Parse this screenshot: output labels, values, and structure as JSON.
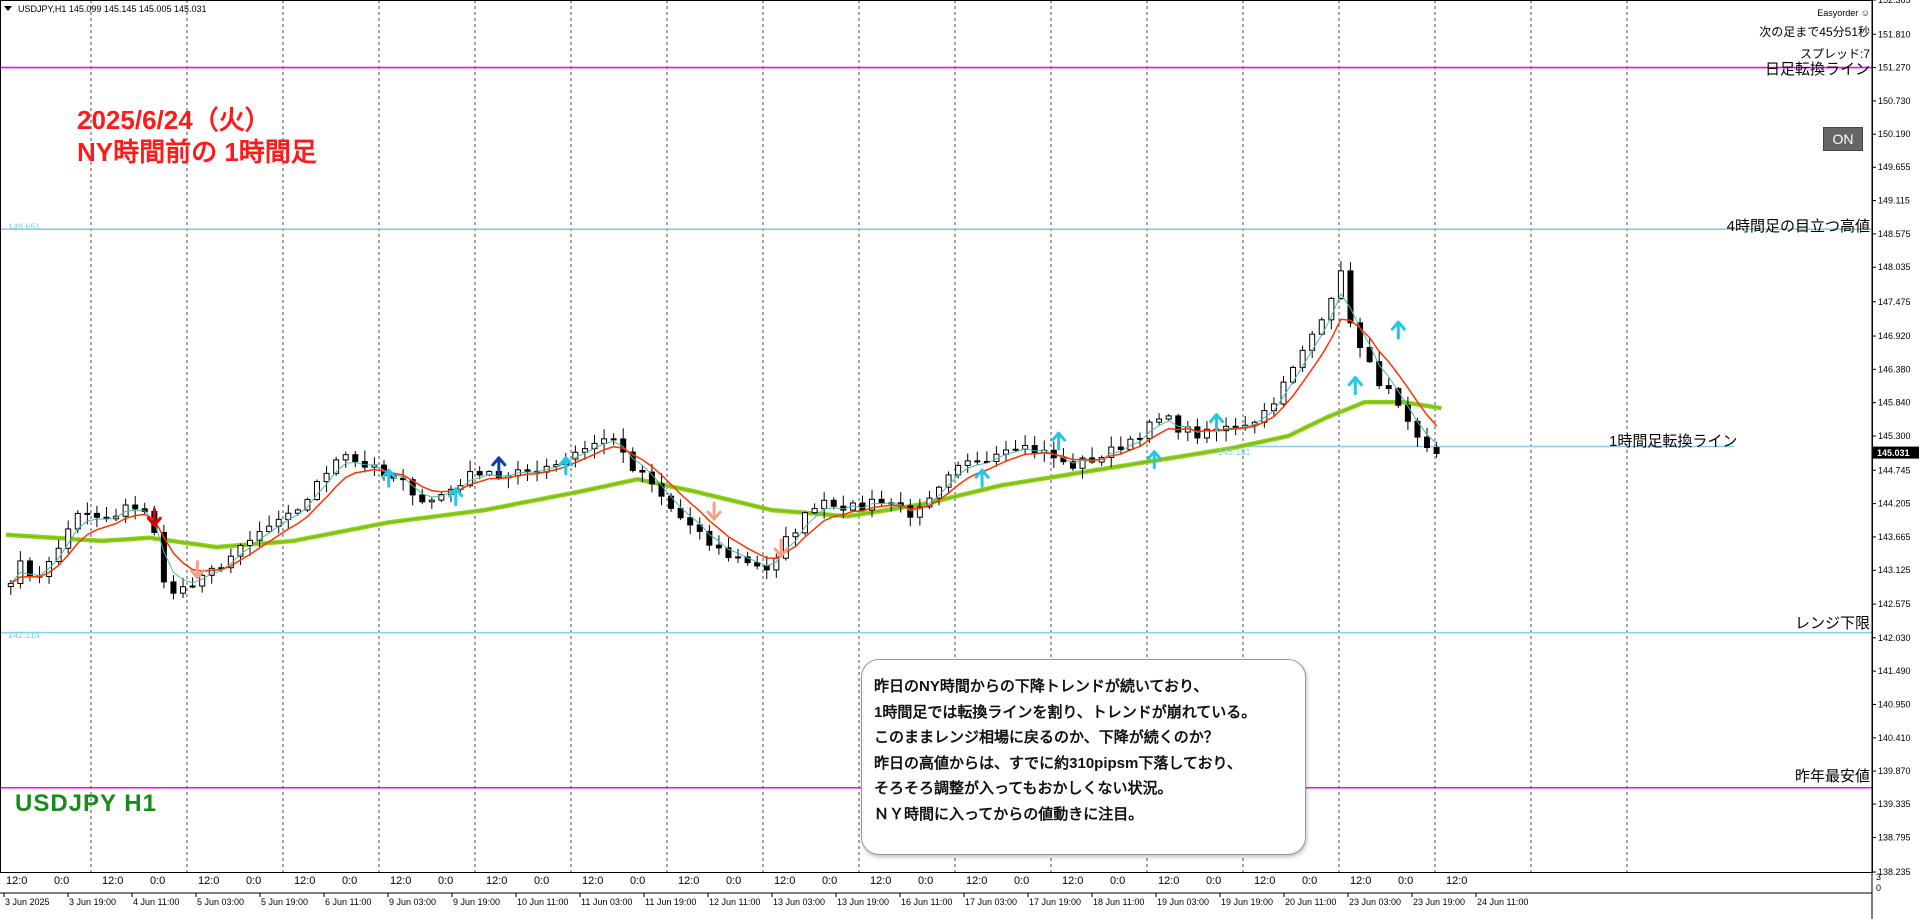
{
  "header": {
    "symbol_info": "USDJPY,H1  145.099 145.145 145.005 145.031",
    "ea_name": "Easyorder",
    "next_bar_timer": "次の足まで45分51秒",
    "spread": "スプレッド:7",
    "on_button": "ON"
  },
  "annotations": {
    "date_title": "2025/6/24（火）",
    "session_title": "NY時間前の 1時間足",
    "symbol_label": "USDJPY H1",
    "note_lines": [
      "昨日のNY時間からの下降トレンドが続いており、",
      "1時間足では転換ラインを割り、トレンドが崩れている。",
      "このままレンジ相場に戻るのか、下降が続くのか？",
      "昨日の高値からは、すでに約310pipsm下落しており、",
      "そろそろ調整が入ってもおかしくない状況。",
      "ＮＹ時間に入ってからの値動きに注目。"
    ]
  },
  "chart_data": {
    "type": "candlestick",
    "symbol": "USDJPY",
    "timeframe": "H1",
    "ylim": [
      138.235,
      152.365
    ],
    "current_price": 145.031,
    "last_bar": {
      "open": 145.099,
      "high": 145.145,
      "low": 145.005,
      "close": 145.031
    },
    "y_ticks": [
      "152.365",
      "151.810",
      "151.270",
      "150.730",
      "150.190",
      "149.655",
      "149.115",
      "148.575",
      "148.035",
      "147.475",
      "146.920",
      "146.380",
      "145.840",
      "145.300",
      "144.745",
      "144.205",
      "143.665",
      "143.125",
      "142.575",
      "142.030",
      "141.490",
      "140.950",
      "140.410",
      "139.870",
      "139.335",
      "138.795",
      "138.235"
    ],
    "x_ticks_major": [
      "3 Jun 2025",
      "3 Jun 19:00",
      "4 Jun 11:00",
      "5 Jun 03:00",
      "5 Jun 19:00",
      "6 Jun 11:00",
      "9 Jun 03:00",
      "9 Jun 19:00",
      "10 Jun 11:00",
      "11 Jun 03:00",
      "11 Jun 19:00",
      "12 Jun 11:00",
      "13 Jun 03:00",
      "13 Jun 19:00",
      "16 Jun 11:00",
      "17 Jun 03:00",
      "17 Jun 19:00",
      "18 Jun 11:00",
      "19 Jun 03:00",
      "19 Jun 19:00",
      "20 Jun 11:00",
      "23 Jun 03:00",
      "23 Jun 19:00",
      "24 Jun 11:00"
    ],
    "x_ticks_minor": [
      "12:0",
      "0:0",
      "12:0",
      "0:0",
      "12:0",
      "0:0",
      "12:0",
      "0:0",
      "12:0",
      "0:0",
      "12:0",
      "0:0",
      "12:0",
      "0:0",
      "12:0",
      "0:0",
      "12:0",
      "0:0",
      "12:0",
      "0:0",
      "12:0",
      "0:0",
      "12:0",
      "0:0",
      "12:0",
      "0:0",
      "12:0",
      "0:0",
      "12:0",
      "0:0",
      "12:0"
    ],
    "horizontal_lines": [
      {
        "name": "日足転換ライン",
        "price": 151.27,
        "color": "#ff00ff"
      },
      {
        "name": "4時間足の目立つ高値",
        "price": 148.651,
        "color": "#87ceeb",
        "level_text": "148.651"
      },
      {
        "name": "1時間足転換ライン",
        "price": 145.13,
        "color": "#87ceeb",
        "level_text": "145.131"
      },
      {
        "name": "レンジ下限",
        "price": 142.114,
        "color": "#87ceeb",
        "level_text": "142.114"
      },
      {
        "name": "昨年最安値",
        "price": 139.6,
        "color": "#ff00ff"
      }
    ],
    "price_path": [
      {
        "x": 0.0,
        "y": 142.9
      },
      {
        "x": 1.5,
        "y": 143.2
      },
      {
        "x": 3.0,
        "y": 143.0
      },
      {
        "x": 5.0,
        "y": 143.3
      },
      {
        "x": 7.0,
        "y": 144.0
      },
      {
        "x": 9.0,
        "y": 144.0
      },
      {
        "x": 11.0,
        "y": 143.9
      },
      {
        "x": 13.0,
        "y": 144.2
      },
      {
        "x": 14.5,
        "y": 144.1
      },
      {
        "x": 15.5,
        "y": 143.7
      },
      {
        "x": 16.5,
        "y": 142.9
      },
      {
        "x": 18.0,
        "y": 142.8
      },
      {
        "x": 20.0,
        "y": 142.9
      },
      {
        "x": 21.5,
        "y": 143.1
      },
      {
        "x": 23.0,
        "y": 143.3
      },
      {
        "x": 25.0,
        "y": 143.5
      },
      {
        "x": 27.0,
        "y": 143.8
      },
      {
        "x": 29.0,
        "y": 143.9
      },
      {
        "x": 31.0,
        "y": 144.2
      },
      {
        "x": 33.0,
        "y": 144.6
      },
      {
        "x": 35.0,
        "y": 145.1
      },
      {
        "x": 36.5,
        "y": 144.9
      },
      {
        "x": 38.0,
        "y": 144.8
      },
      {
        "x": 40.0,
        "y": 144.6
      },
      {
        "x": 42.0,
        "y": 144.5
      },
      {
        "x": 44.0,
        "y": 144.2
      },
      {
        "x": 46.0,
        "y": 144.4
      },
      {
        "x": 48.0,
        "y": 144.6
      },
      {
        "x": 50.0,
        "y": 144.8
      },
      {
        "x": 52.0,
        "y": 144.6
      },
      {
        "x": 54.0,
        "y": 144.7
      },
      {
        "x": 56.0,
        "y": 144.8
      },
      {
        "x": 58.0,
        "y": 144.9
      },
      {
        "x": 60.0,
        "y": 145.1
      },
      {
        "x": 62.0,
        "y": 145.2
      },
      {
        "x": 63.5,
        "y": 145.3
      },
      {
        "x": 65.0,
        "y": 144.8
      },
      {
        "x": 67.0,
        "y": 144.6
      },
      {
        "x": 69.0,
        "y": 144.2
      },
      {
        "x": 71.0,
        "y": 143.9
      },
      {
        "x": 73.0,
        "y": 143.6
      },
      {
        "x": 75.0,
        "y": 143.4
      },
      {
        "x": 77.0,
        "y": 143.3
      },
      {
        "x": 79.0,
        "y": 143.2
      },
      {
        "x": 80.0,
        "y": 143.1
      },
      {
        "x": 81.5,
        "y": 143.6
      },
      {
        "x": 83.0,
        "y": 143.9
      },
      {
        "x": 85.0,
        "y": 144.3
      },
      {
        "x": 87.0,
        "y": 144.2
      },
      {
        "x": 89.0,
        "y": 144.1
      },
      {
        "x": 91.0,
        "y": 144.3
      },
      {
        "x": 93.0,
        "y": 144.2
      },
      {
        "x": 95.0,
        "y": 144.0
      },
      {
        "x": 97.0,
        "y": 144.3
      },
      {
        "x": 99.0,
        "y": 144.7
      },
      {
        "x": 101.0,
        "y": 144.9
      },
      {
        "x": 103.0,
        "y": 145.0
      },
      {
        "x": 105.0,
        "y": 145.2
      },
      {
        "x": 107.0,
        "y": 145.1
      },
      {
        "x": 109.0,
        "y": 145.0
      },
      {
        "x": 111.0,
        "y": 144.8
      },
      {
        "x": 113.0,
        "y": 144.9
      },
      {
        "x": 115.0,
        "y": 145.0
      },
      {
        "x": 117.0,
        "y": 145.2
      },
      {
        "x": 119.0,
        "y": 145.4
      },
      {
        "x": 121.0,
        "y": 145.6
      },
      {
        "x": 123.0,
        "y": 145.4
      },
      {
        "x": 125.0,
        "y": 145.3
      },
      {
        "x": 127.0,
        "y": 145.4
      },
      {
        "x": 129.0,
        "y": 145.5
      },
      {
        "x": 131.0,
        "y": 145.6
      },
      {
        "x": 133.0,
        "y": 146.0
      },
      {
        "x": 135.0,
        "y": 146.5
      },
      {
        "x": 137.0,
        "y": 147.1
      },
      {
        "x": 138.5,
        "y": 147.6
      },
      {
        "x": 139.5,
        "y": 147.9
      },
      {
        "x": 140.5,
        "y": 147.2
      },
      {
        "x": 141.5,
        "y": 146.7
      },
      {
        "x": 143.0,
        "y": 146.3
      },
      {
        "x": 144.5,
        "y": 146.0
      },
      {
        "x": 146.0,
        "y": 145.6
      },
      {
        "x": 147.0,
        "y": 145.3
      },
      {
        "x": 148.0,
        "y": 145.1
      },
      {
        "x": 149.0,
        "y": 145.031
      }
    ],
    "slow_ma": [
      {
        "x": 0,
        "y": 143.7
      },
      {
        "x": 10,
        "y": 143.6
      },
      {
        "x": 15,
        "y": 143.65
      },
      {
        "x": 22,
        "y": 143.5
      },
      {
        "x": 30,
        "y": 143.6
      },
      {
        "x": 40,
        "y": 143.9
      },
      {
        "x": 50,
        "y": 144.1
      },
      {
        "x": 60,
        "y": 144.4
      },
      {
        "x": 66,
        "y": 144.6
      },
      {
        "x": 72,
        "y": 144.4
      },
      {
        "x": 80,
        "y": 144.1
      },
      {
        "x": 88,
        "y": 144.0
      },
      {
        "x": 96,
        "y": 144.2
      },
      {
        "x": 104,
        "y": 144.5
      },
      {
        "x": 112,
        "y": 144.7
      },
      {
        "x": 120,
        "y": 144.9
      },
      {
        "x": 128,
        "y": 145.1
      },
      {
        "x": 134,
        "y": 145.3
      },
      {
        "x": 138,
        "y": 145.6
      },
      {
        "x": 142,
        "y": 145.85
      },
      {
        "x": 146,
        "y": 145.85
      },
      {
        "x": 150,
        "y": 145.75
      }
    ],
    "signals": [
      {
        "x": 15.5,
        "y": 144.0,
        "dir": "down",
        "color": "#e00000"
      },
      {
        "x": 20.0,
        "y": 143.15,
        "dir": "down",
        "color": "#f4a08a"
      },
      {
        "x": 40.0,
        "y": 144.6,
        "dir": "up",
        "color": "#20c8e8"
      },
      {
        "x": 47.0,
        "y": 144.3,
        "dir": "up",
        "color": "#20c8e8"
      },
      {
        "x": 51.5,
        "y": 144.8,
        "dir": "up",
        "color": "#1040a0"
      },
      {
        "x": 58.5,
        "y": 144.8,
        "dir": "up",
        "color": "#20c8e8"
      },
      {
        "x": 74.0,
        "y": 144.1,
        "dir": "down",
        "color": "#f4a08a"
      },
      {
        "x": 81.0,
        "y": 143.5,
        "dir": "down",
        "color": "#f4a08a"
      },
      {
        "x": 102.0,
        "y": 144.6,
        "dir": "up",
        "color": "#20c8e8"
      },
      {
        "x": 110.0,
        "y": 145.2,
        "dir": "up",
        "color": "#20c8e8"
      },
      {
        "x": 120.0,
        "y": 144.9,
        "dir": "up",
        "color": "#20c8e8"
      },
      {
        "x": 126.5,
        "y": 145.5,
        "dir": "up",
        "color": "#20c8e8"
      },
      {
        "x": 141.0,
        "y": 146.1,
        "dir": "up",
        "color": "#20c8e8"
      },
      {
        "x": 145.5,
        "y": 147.0,
        "dir": "up",
        "color": "#20c8e8"
      }
    ],
    "colors": {
      "candles": "#000000",
      "fast_ma": "#ff3300",
      "mid_ma": "#4ab8a8",
      "slow_ma": "#8ed11b",
      "grid": "#000000",
      "magenta_line": "#ff00ff",
      "blue_line": "#87ceeb"
    },
    "grid": "vertical dashed"
  }
}
